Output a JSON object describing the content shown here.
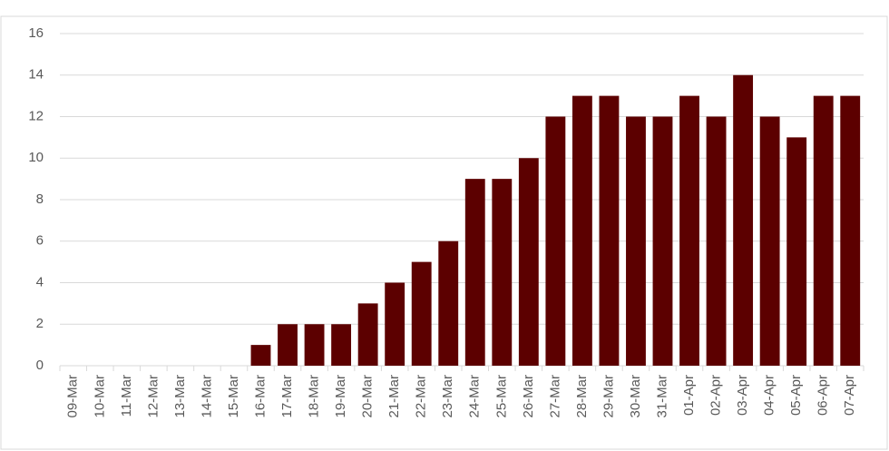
{
  "chart_data": {
    "type": "bar",
    "categories": [
      "09-Mar",
      "10-Mar",
      "11-Mar",
      "12-Mar",
      "13-Mar",
      "14-Mar",
      "15-Mar",
      "16-Mar",
      "17-Mar",
      "18-Mar",
      "19-Mar",
      "20-Mar",
      "21-Mar",
      "22-Mar",
      "23-Mar",
      "24-Mar",
      "25-Mar",
      "26-Mar",
      "27-Mar",
      "28-Mar",
      "29-Mar",
      "30-Mar",
      "31-Mar",
      "01-Apr",
      "02-Apr",
      "03-Apr",
      "04-Apr",
      "05-Apr",
      "06-Apr",
      "07-Apr"
    ],
    "values": [
      0,
      0,
      0,
      0,
      0,
      0,
      0,
      1,
      2,
      2,
      2,
      3,
      4,
      5,
      6,
      9,
      9,
      10,
      12,
      13,
      13,
      12,
      12,
      13,
      12,
      14,
      12,
      11,
      13,
      13
    ],
    "color": "#5c0000",
    "ylim": [
      0,
      16
    ],
    "yticks": [
      0,
      2,
      4,
      6,
      8,
      10,
      12,
      14,
      16
    ],
    "grid": true
  }
}
